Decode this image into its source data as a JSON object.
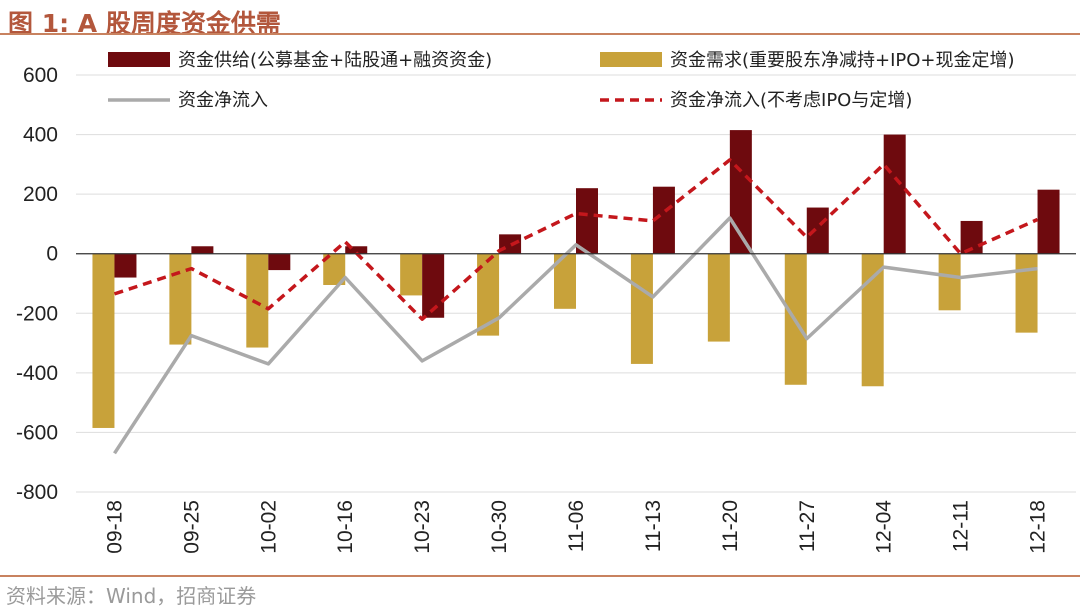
{
  "title": "图 1:  A 股周度资金供需",
  "source": "资料来源：Wind，招商证券",
  "colors": {
    "supply": "#6e0a0e",
    "demand": "#c8a23a",
    "net": "#aaaaaa",
    "net_ex": "#c4171c",
    "grid": "#dddddd"
  },
  "chart_data": {
    "type": "bar",
    "categories": [
      "09-18",
      "09-25",
      "10-02",
      "10-16",
      "10-23",
      "10-30",
      "11-06",
      "11-13",
      "11-20",
      "11-27",
      "12-04",
      "12-11",
      "12-18"
    ],
    "ylim": [
      -800,
      600
    ],
    "yticks": [
      600,
      400,
      200,
      0,
      -200,
      -400,
      -600,
      -800
    ],
    "grid": true,
    "legend_position": "top",
    "series": [
      {
        "name": "资金供给(公募基金+陆股通+融资资金)",
        "type": "bar",
        "values": [
          -80,
          25,
          -55,
          25,
          -215,
          65,
          220,
          225,
          415,
          155,
          400,
          110,
          215
        ]
      },
      {
        "name": "资金需求(重要股东净减持+IPO+现金定增)",
        "type": "bar",
        "values": [
          -585,
          -305,
          -315,
          -105,
          -140,
          -275,
          -185,
          -370,
          -295,
          -440,
          -445,
          -190,
          -265
        ]
      },
      {
        "name": "资金净流入",
        "type": "line",
        "values": [
          -670,
          -275,
          -370,
          -80,
          -360,
          -215,
          30,
          -145,
          120,
          -285,
          -45,
          -80,
          -50
        ]
      },
      {
        "name": "资金净流入(不考虑IPO与定增)",
        "type": "line",
        "values": [
          -135,
          -50,
          -185,
          40,
          -220,
          10,
          135,
          110,
          315,
          55,
          300,
          0,
          115
        ]
      }
    ]
  }
}
